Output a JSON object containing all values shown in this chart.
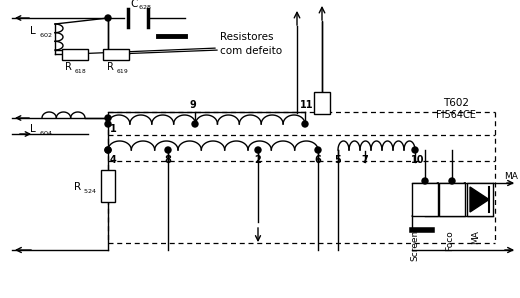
{
  "bg_color": "#ffffff",
  "fg_color": "#000000",
  "figsize": [
    5.2,
    2.98
  ],
  "dpi": 100,
  "xlim": [
    0,
    520
  ],
  "ylim": [
    0,
    298
  ]
}
